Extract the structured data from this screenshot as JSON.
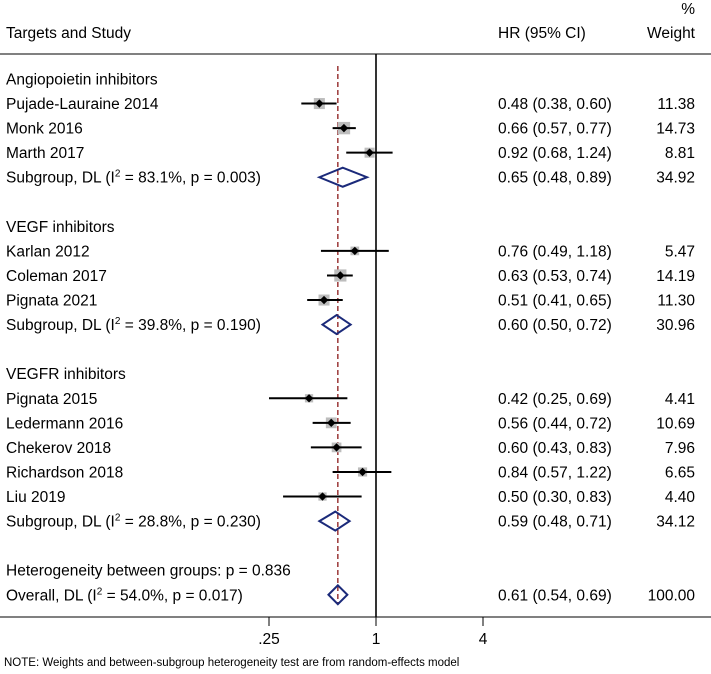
{
  "chart_data": {
    "type": "forest",
    "title": "",
    "xlabel": "",
    "ylabel": "",
    "x_scale": "log2",
    "xlim": [
      0.125,
      8
    ],
    "x_ticks": [
      {
        "value": 0.25,
        "label": ".25"
      },
      {
        "value": 1,
        "label": "1"
      },
      {
        "value": 4,
        "label": "4"
      }
    ],
    "reference_line": 1,
    "overall_line": 0.61,
    "columns": {
      "study": "Targets and Study",
      "hr": "HR (95% CI)",
      "weight_pct": "%",
      "weight": "Weight"
    },
    "groups": [
      {
        "name": "Angiopoietin inhibitors",
        "studies": [
          {
            "name": "Pujade-Lauraine 2014",
            "hr": 0.48,
            "lo": 0.38,
            "hi": 0.6,
            "ci_text": "0.48 (0.38, 0.60)",
            "weight": 11.38,
            "weight_text": "11.38"
          },
          {
            "name": "Monk 2016",
            "hr": 0.66,
            "lo": 0.57,
            "hi": 0.77,
            "ci_text": "0.66 (0.57, 0.77)",
            "weight": 14.73,
            "weight_text": "14.73"
          },
          {
            "name": "Marth 2017",
            "hr": 0.92,
            "lo": 0.68,
            "hi": 1.24,
            "ci_text": "0.92 (0.68, 1.24)",
            "weight": 8.81,
            "weight_text": "8.81"
          }
        ],
        "subgroup": {
          "prefix": "Subgroup, DL (I",
          "sup": "2",
          "suffix": " = 83.1%, p = 0.003)",
          "hr": 0.65,
          "lo": 0.48,
          "hi": 0.89,
          "ci_text": "0.65 (0.48, 0.89)",
          "weight_text": "34.92"
        }
      },
      {
        "name": "VEGF inhibitors",
        "studies": [
          {
            "name": "Karlan 2012",
            "hr": 0.76,
            "lo": 0.49,
            "hi": 1.18,
            "ci_text": "0.76 (0.49, 1.18)",
            "weight": 5.47,
            "weight_text": "5.47"
          },
          {
            "name": "Coleman 2017",
            "hr": 0.63,
            "lo": 0.53,
            "hi": 0.74,
            "ci_text": "0.63 (0.53, 0.74)",
            "weight": 14.19,
            "weight_text": "14.19"
          },
          {
            "name": "Pignata 2021",
            "hr": 0.51,
            "lo": 0.41,
            "hi": 0.65,
            "ci_text": "0.51 (0.41, 0.65)",
            "weight": 11.3,
            "weight_text": "11.30"
          }
        ],
        "subgroup": {
          "prefix": "Subgroup, DL (I",
          "sup": "2",
          "suffix": " = 39.8%, p = 0.190)",
          "hr": 0.6,
          "lo": 0.5,
          "hi": 0.72,
          "ci_text": "0.60 (0.50, 0.72)",
          "weight_text": "30.96"
        }
      },
      {
        "name": "VEGFR inhibitors",
        "studies": [
          {
            "name": "Pignata 2015",
            "hr": 0.42,
            "lo": 0.25,
            "hi": 0.69,
            "ci_text": "0.42 (0.25, 0.69)",
            "weight": 4.41,
            "weight_text": "4.41"
          },
          {
            "name": "Ledermann 2016",
            "hr": 0.56,
            "lo": 0.44,
            "hi": 0.72,
            "ci_text": "0.56 (0.44, 0.72)",
            "weight": 10.69,
            "weight_text": "10.69"
          },
          {
            "name": "Chekerov 2018",
            "hr": 0.6,
            "lo": 0.43,
            "hi": 0.83,
            "ci_text": "0.60 (0.43, 0.83)",
            "weight": 7.96,
            "weight_text": "7.96"
          },
          {
            "name": "Richardson 2018",
            "hr": 0.84,
            "lo": 0.57,
            "hi": 1.22,
            "ci_text": "0.84 (0.57, 1.22)",
            "weight": 6.65,
            "weight_text": "6.65"
          },
          {
            "name": "Liu 2019",
            "hr": 0.5,
            "lo": 0.3,
            "hi": 0.83,
            "ci_text": "0.50 (0.30, 0.83)",
            "weight": 4.4,
            "weight_text": "4.40"
          }
        ],
        "subgroup": {
          "prefix": "Subgroup, DL (I",
          "sup": "2",
          "suffix": " = 28.8%, p = 0.230)",
          "hr": 0.59,
          "lo": 0.48,
          "hi": 0.71,
          "ci_text": "0.59 (0.48, 0.71)",
          "weight_text": "34.12"
        }
      }
    ],
    "heterogeneity_text": "Heterogeneity between groups: p = 0.836",
    "overall": {
      "prefix": "Overall, DL (I",
      "sup": "2",
      "suffix": " = 54.0%, p = 0.017)",
      "hr": 0.61,
      "lo": 0.54,
      "hi": 0.69,
      "ci_text": "0.61 (0.54, 0.69)",
      "weight_text": "100.00"
    },
    "note": "NOTE: Weights and between-subgroup heterogeneity test are from random-effects model"
  },
  "colors": {
    "text": "#000000",
    "box": "#bdbdbd",
    "point": "#000000",
    "diamond": "#1b2a7a",
    "overall_line": "#8b1a1a",
    "axis": "#000000"
  }
}
